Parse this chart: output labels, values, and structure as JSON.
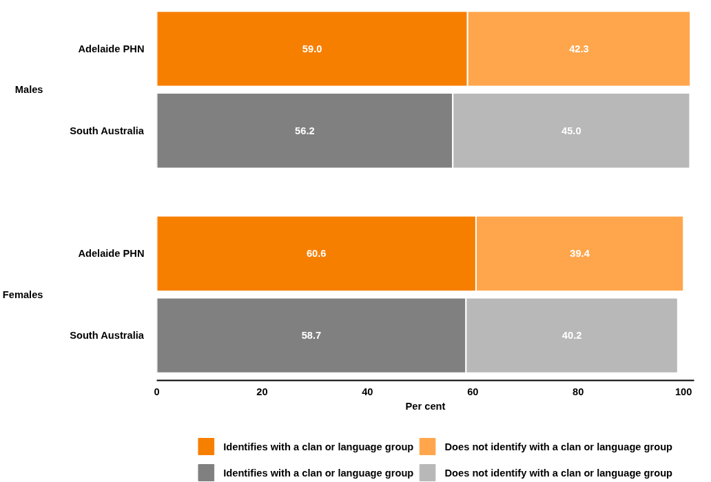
{
  "chart_data": {
    "type": "bar",
    "orientation": "horizontal",
    "stacked": true,
    "categories": [
      "Adelaide PHN",
      "South Australia",
      "Adelaide PHN",
      "South Australia"
    ],
    "annotations": [
      "Males",
      "Females"
    ],
    "series": [
      {
        "name": "Identifies with a clan or language group",
        "color": "#f77f00",
        "values": [
          59.0,
          null,
          60.6,
          null
        ],
        "value_labels": [
          "59.0",
          null,
          "60.6",
          null
        ]
      },
      {
        "name": "Does not identify with a clan or language group",
        "color": "#ffa64d",
        "values": [
          42.3,
          null,
          39.4,
          null
        ],
        "value_labels": [
          "42.3",
          null,
          "39.4",
          null
        ]
      },
      {
        "name": "Identifies with a clan or language group",
        "color": "#808080",
        "values": [
          null,
          56.2,
          null,
          58.7
        ],
        "value_labels": [
          null,
          "56.2",
          null,
          "58.7"
        ]
      },
      {
        "name": "Does not identify with a clan or language group",
        "color": "#b8b8b8",
        "values": [
          null,
          45.0,
          null,
          40.2
        ],
        "value_labels": [
          null,
          "45.0",
          null,
          "40.2"
        ]
      }
    ],
    "xlabel": "Per cent",
    "xlim": [
      0,
      102
    ],
    "xticks": [
      0,
      20,
      40,
      60,
      80,
      100
    ],
    "grid": false,
    "legend": "bottom"
  }
}
